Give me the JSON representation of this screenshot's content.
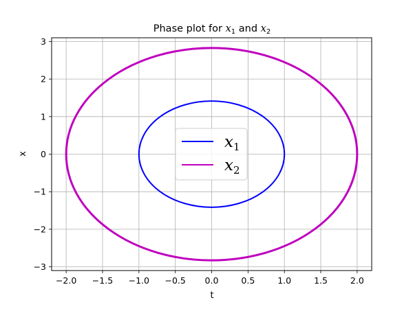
{
  "chart_data": {
    "type": "line",
    "title": {
      "prefix": "Phase plot for ",
      "var1": "x",
      "sub1": "1",
      "middle": " and ",
      "var2": "x",
      "sub2": "2"
    },
    "xlabel": "t",
    "ylabel": "x",
    "xlim": [
      -2.2,
      2.2
    ],
    "ylim": [
      -3.1,
      3.1
    ],
    "xticks": [
      -2.0,
      -1.5,
      -1.0,
      -0.5,
      0.0,
      0.5,
      1.0,
      1.5,
      2.0
    ],
    "xtick_labels": [
      "−2.0",
      "−1.5",
      "−1.0",
      "−0.5",
      "0.0",
      "0.5",
      "1.0",
      "1.5",
      "2.0"
    ],
    "yticks": [
      -3,
      -2,
      -1,
      0,
      1,
      2,
      3
    ],
    "ytick_labels": [
      "−3",
      "−2",
      "−1",
      "0",
      "1",
      "2",
      "3"
    ],
    "grid": true,
    "legend_position": "center",
    "series": [
      {
        "name": "x",
        "name_sub": "1",
        "color": "#0000ff",
        "shape": "ellipse",
        "center": [
          0,
          0
        ],
        "semi_x": 1.0,
        "semi_y": 1.414
      },
      {
        "name": "x",
        "name_sub": "2",
        "color": "#bf00bf",
        "shape": "ellipse",
        "center": [
          0,
          0
        ],
        "semi_x": 2.0,
        "semi_y": 2.828
      }
    ]
  }
}
